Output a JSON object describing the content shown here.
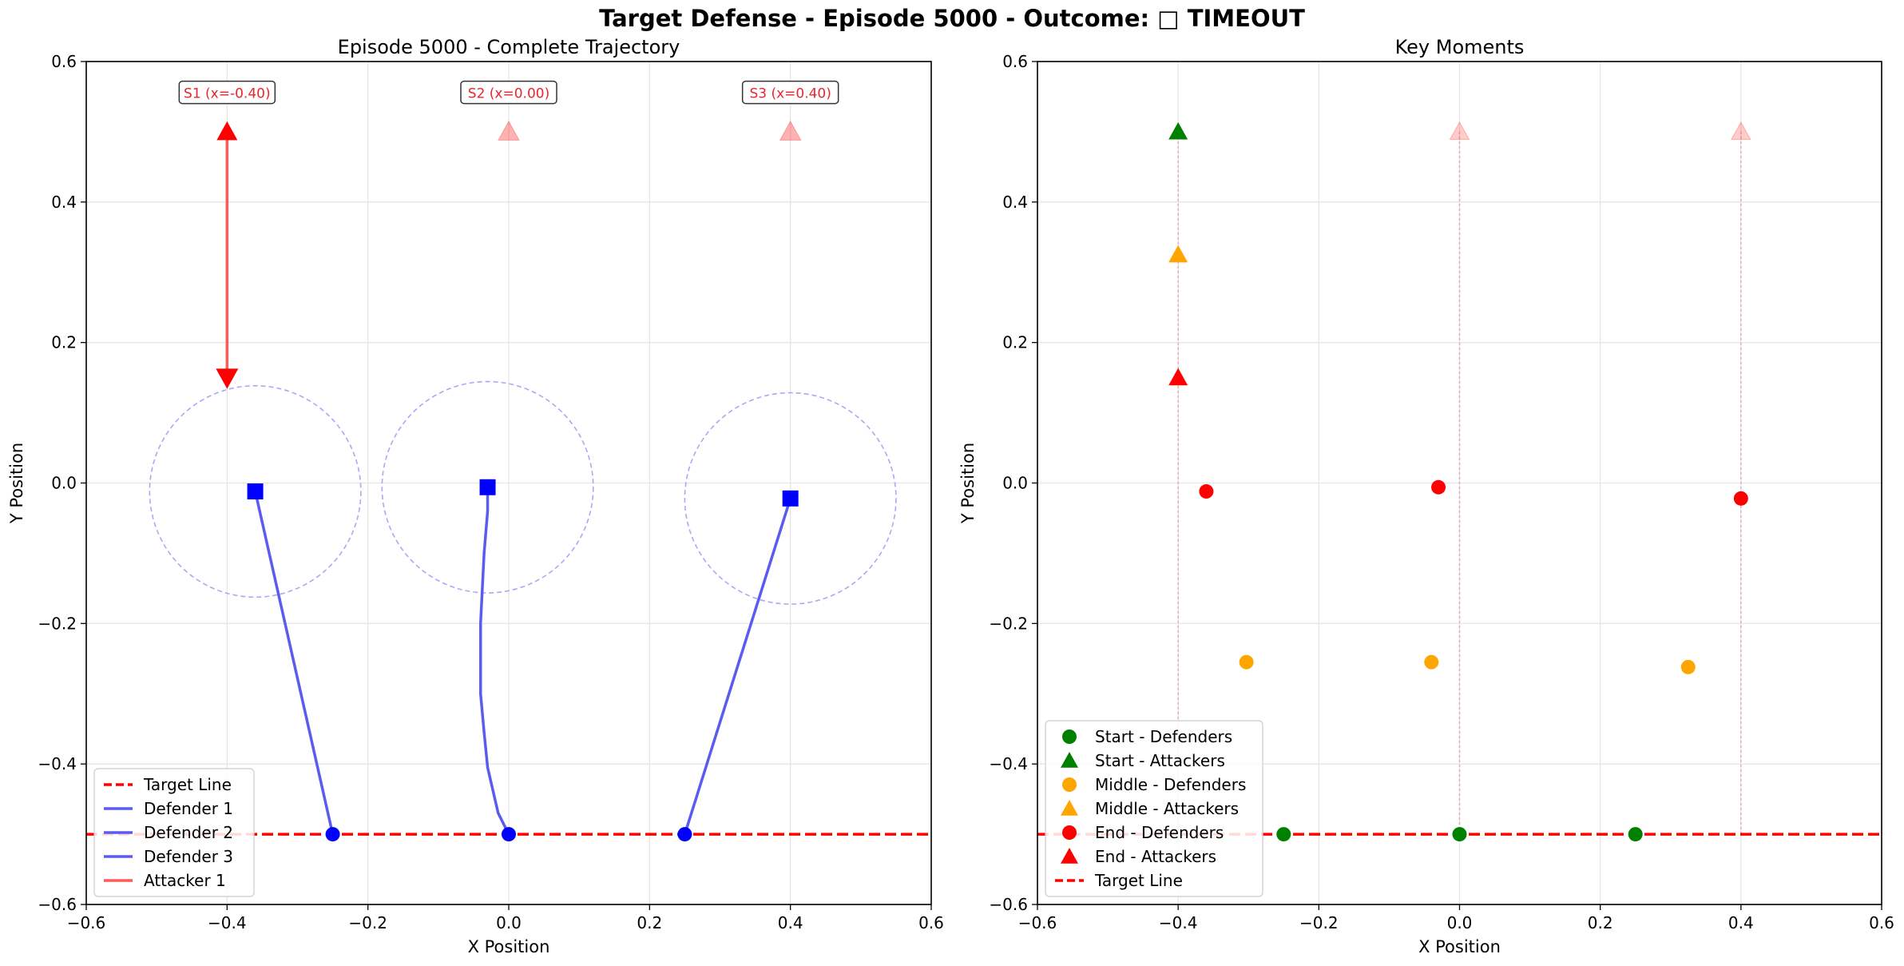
{
  "suptitle": "Target Defense - Episode 5000 - Outcome: □ TIMEOUT",
  "colors": {
    "defender_line": "#5b5bf0",
    "defender_marker": "#0000ff",
    "attacker": "#ff0000",
    "target_line": "#ff0000",
    "start": "#008000",
    "middle": "#ffa500",
    "end": "#ff0000",
    "capture_circle": "#a9a9f5"
  },
  "chart_data": [
    {
      "type": "line",
      "title": "Episode 5000 - Complete Trajectory",
      "xlabel": "X Position",
      "ylabel": "Y Position",
      "xlim": [
        -0.6,
        0.6
      ],
      "ylim": [
        -0.6,
        0.6
      ],
      "xticks": [
        "−0.6",
        "−0.4",
        "−0.2",
        "0.0",
        "0.2",
        "0.4",
        "0.6"
      ],
      "yticks": [
        "−0.6",
        "−0.4",
        "−0.2",
        "0.0",
        "0.2",
        "0.4",
        "0.6"
      ],
      "grid": true,
      "legend_position": "lower-left",
      "target_line": {
        "y": -0.5,
        "name": "Target Line"
      },
      "spawn_labels": [
        {
          "text": "S1 (x=-0.40)",
          "x": -0.4,
          "y": 0.5
        },
        {
          "text": "S2 (x=0.00)",
          "x": 0.0,
          "y": 0.5
        },
        {
          "text": "S3 (x=0.40)",
          "x": 0.4,
          "y": 0.5
        }
      ],
      "series": [
        {
          "name": "Defender 1",
          "role": "defender",
          "x": [
            -0.25,
            -0.36
          ],
          "y": [
            -0.5,
            -0.012
          ],
          "capture_radius": 0.15
        },
        {
          "name": "Defender 2",
          "role": "defender",
          "x": [
            0.0,
            -0.015,
            -0.03,
            -0.035,
            -0.04,
            -0.04,
            -0.035,
            -0.03,
            -0.03
          ],
          "y": [
            -0.5,
            -0.47,
            -0.405,
            -0.355,
            -0.3,
            -0.2,
            -0.1,
            -0.04,
            -0.006
          ],
          "capture_radius": 0.15
        },
        {
          "name": "Defender 3",
          "role": "defender",
          "x": [
            0.25,
            0.4
          ],
          "y": [
            -0.5,
            -0.022
          ],
          "capture_radius": 0.15
        },
        {
          "name": "Attacker 1",
          "role": "attacker",
          "x": [
            -0.4,
            -0.4
          ],
          "y": [
            0.5,
            0.15
          ]
        }
      ],
      "inactive_attackers": [
        {
          "x": 0.0,
          "y": 0.5
        },
        {
          "x": 0.4,
          "y": 0.5
        }
      ]
    },
    {
      "type": "scatter",
      "title": "Key Moments",
      "xlabel": "X Position",
      "ylabel": "Y Position",
      "xlim": [
        -0.6,
        0.6
      ],
      "ylim": [
        -0.6,
        0.6
      ],
      "xticks": [
        "−0.6",
        "−0.4",
        "−0.2",
        "0.0",
        "0.2",
        "0.4",
        "0.6"
      ],
      "yticks": [
        "−0.6",
        "−0.4",
        "−0.2",
        "0.0",
        "0.2",
        "0.4",
        "0.6"
      ],
      "grid": true,
      "legend_position": "lower-left",
      "target_line": {
        "y": -0.5,
        "name": "Target Line"
      },
      "spawn_lanes": [
        -0.4,
        0.0,
        0.4
      ],
      "series": [
        {
          "name": "Start - Defenders",
          "marker": "circle",
          "color": "#008000",
          "points": [
            [
              -0.25,
              -0.5
            ],
            [
              0.0,
              -0.5
            ],
            [
              0.25,
              -0.5
            ]
          ]
        },
        {
          "name": "Start - Attackers",
          "marker": "triangle",
          "color": "#008000",
          "points": [
            [
              -0.4,
              0.5
            ]
          ]
        },
        {
          "name": "Middle - Defenders",
          "marker": "circle",
          "color": "#ffa500",
          "points": [
            [
              -0.303,
              -0.255
            ],
            [
              -0.04,
              -0.255
            ],
            [
              0.325,
              -0.262
            ]
          ]
        },
        {
          "name": "Middle - Attackers",
          "marker": "triangle",
          "color": "#ffa500",
          "points": [
            [
              -0.4,
              0.325
            ]
          ]
        },
        {
          "name": "End - Defenders",
          "marker": "circle",
          "color": "#ff0000",
          "points": [
            [
              -0.36,
              -0.012
            ],
            [
              -0.03,
              -0.006
            ],
            [
              0.4,
              -0.022
            ]
          ]
        },
        {
          "name": "End - Attackers",
          "marker": "triangle",
          "color": "#ff0000",
          "points": [
            [
              -0.4,
              0.15
            ]
          ]
        }
      ],
      "inactive_attackers": [
        {
          "x": 0.0,
          "y": 0.5
        },
        {
          "x": 0.4,
          "y": 0.5
        }
      ]
    }
  ]
}
